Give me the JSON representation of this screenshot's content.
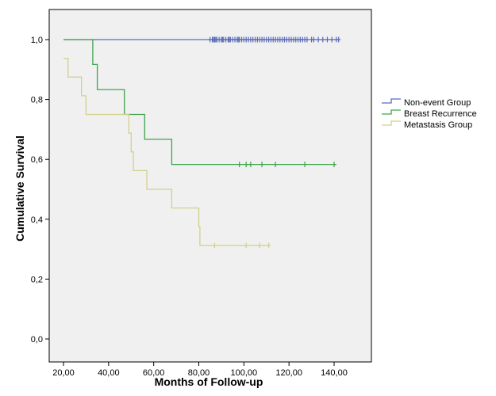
{
  "chart_data": {
    "type": "line",
    "subtype": "kaplan-meier-survival",
    "xlabel": "Months of Follow-up",
    "ylabel": "Cumulative Survival",
    "xlim": [
      15,
      150
    ],
    "ylim": [
      -0.05,
      1.07
    ],
    "x_ticks": [
      20,
      40,
      60,
      80,
      100,
      120,
      140
    ],
    "x_tick_labels": [
      "20,00",
      "40,00",
      "60,00",
      "80,00",
      "100,00",
      "120,00",
      "140,00"
    ],
    "y_ticks": [
      0.0,
      0.2,
      0.4,
      0.6,
      0.8,
      1.0
    ],
    "y_tick_labels": [
      "0,0",
      "0,2",
      "0,4",
      "0,6",
      "0,8",
      "1,0"
    ],
    "grid": false,
    "legend_position": "right",
    "background": "#f0f0f0",
    "series": [
      {
        "name": "Non-event Group",
        "color": "#5b6bb8",
        "steps": [
          [
            20,
            1.0
          ],
          [
            142,
            1.0
          ]
        ],
        "censored_x": [
          85,
          86,
          86.5,
          87,
          87.5,
          88,
          89,
          90,
          90.5,
          91,
          92,
          93,
          93.5,
          94,
          95,
          96,
          97,
          97.5,
          98,
          99,
          100,
          101,
          102,
          103,
          104,
          105,
          106,
          107,
          108,
          109,
          110,
          111,
          112,
          113,
          114,
          115,
          116,
          117,
          118,
          119,
          120,
          121,
          122,
          123,
          124,
          125,
          126,
          127,
          128,
          130,
          131,
          133,
          135,
          137,
          139,
          141,
          142
        ],
        "censored_y": 1.0
      },
      {
        "name": "Breast Recurrence",
        "color": "#3fa34d",
        "steps": [
          [
            20,
            1.0
          ],
          [
            33,
            1.0
          ],
          [
            33,
            0.917
          ],
          [
            35,
            0.917
          ],
          [
            35,
            0.833
          ],
          [
            47,
            0.833
          ],
          [
            47,
            0.75
          ],
          [
            56,
            0.75
          ],
          [
            56,
            0.667
          ],
          [
            68,
            0.667
          ],
          [
            68,
            0.583
          ],
          [
            141,
            0.583
          ]
        ],
        "censored_x": [
          98,
          101,
          103,
          108,
          114,
          127,
          140
        ],
        "censored_y": 0.583
      },
      {
        "name": "Metastasis Group",
        "color": "#d2d08c",
        "steps": [
          [
            20,
            0.9375
          ],
          [
            22,
            0.9375
          ],
          [
            22,
            0.875
          ],
          [
            28,
            0.875
          ],
          [
            28,
            0.8125
          ],
          [
            30,
            0.8125
          ],
          [
            30,
            0.75
          ],
          [
            49,
            0.75
          ],
          [
            49,
            0.6875
          ],
          [
            50,
            0.6875
          ],
          [
            50,
            0.625
          ],
          [
            51,
            0.625
          ],
          [
            51,
            0.5625
          ],
          [
            57,
            0.5625
          ],
          [
            57,
            0.5
          ],
          [
            68,
            0.5
          ],
          [
            68,
            0.4375
          ],
          [
            80,
            0.4375
          ],
          [
            80,
            0.375
          ],
          [
            80.5,
            0.375
          ],
          [
            80.5,
            0.3125
          ],
          [
            111,
            0.3125
          ]
        ],
        "censored_x": [
          87,
          101,
          107,
          111
        ],
        "censored_y": 0.3125
      }
    ]
  }
}
